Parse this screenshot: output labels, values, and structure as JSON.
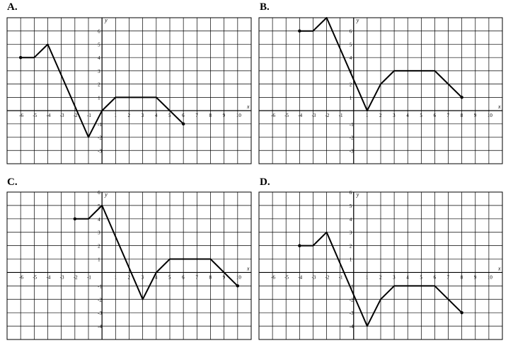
{
  "chart_data": [
    {
      "type": "line",
      "label": "A.",
      "xlabel": "x",
      "ylabel": "y",
      "xlim": [
        -7,
        11
      ],
      "ylim": [
        -4,
        7
      ],
      "x_ticks": [
        -6,
        -5,
        -4,
        -3,
        -2,
        -1,
        1,
        2,
        3,
        4,
        5,
        6,
        7,
        8,
        9,
        10
      ],
      "y_ticks": [
        -3,
        -2,
        -1,
        1,
        2,
        3,
        4,
        5,
        6
      ],
      "grid": true,
      "series": [
        {
          "points": [
            [
              -6,
              4
            ],
            [
              -5,
              4
            ],
            [
              -4,
              5
            ],
            [
              -1,
              -2
            ],
            [
              0,
              0
            ],
            [
              1,
              1
            ],
            [
              4,
              1
            ],
            [
              6,
              -1
            ]
          ]
        }
      ]
    },
    {
      "type": "line",
      "label": "B.",
      "xlabel": "x",
      "ylabel": "y",
      "xlim": [
        -7,
        11
      ],
      "ylim": [
        -4,
        7
      ],
      "x_ticks": [
        -6,
        -5,
        -4,
        -3,
        -2,
        -1,
        1,
        2,
        3,
        4,
        5,
        6,
        7,
        8,
        9,
        10
      ],
      "y_ticks": [
        -3,
        -2,
        -1,
        1,
        2,
        3,
        4,
        5,
        6
      ],
      "grid": true,
      "series": [
        {
          "points": [
            [
              -4,
              6
            ],
            [
              -3,
              6
            ],
            [
              -2,
              7
            ],
            [
              1,
              0
            ],
            [
              2,
              2
            ],
            [
              3,
              3
            ],
            [
              6,
              3
            ],
            [
              8,
              1
            ]
          ]
        }
      ]
    },
    {
      "type": "line",
      "label": "C.",
      "xlabel": "x",
      "ylabel": "y",
      "xlim": [
        -7,
        11
      ],
      "ylim": [
        -5,
        6
      ],
      "x_ticks": [
        -6,
        -5,
        -4,
        -3,
        -2,
        -1,
        1,
        2,
        3,
        4,
        5,
        6,
        7,
        8,
        9,
        10
      ],
      "y_ticks": [
        -4,
        -3,
        -2,
        -1,
        1,
        2,
        3,
        4,
        5,
        6
      ],
      "grid": true,
      "series": [
        {
          "points": [
            [
              -2,
              4
            ],
            [
              -1,
              4
            ],
            [
              0,
              5
            ],
            [
              3,
              -2
            ],
            [
              4,
              0
            ],
            [
              5,
              1
            ],
            [
              8,
              1
            ],
            [
              10,
              -1
            ]
          ]
        }
      ]
    },
    {
      "type": "line",
      "label": "D.",
      "xlabel": "x",
      "ylabel": "y",
      "xlim": [
        -7,
        11
      ],
      "ylim": [
        -5,
        6
      ],
      "x_ticks": [
        -6,
        -5,
        -4,
        -3,
        -2,
        -1,
        1,
        2,
        3,
        4,
        5,
        6,
        7,
        8,
        9,
        10
      ],
      "y_ticks": [
        -4,
        -3,
        -2,
        -1,
        1,
        2,
        3,
        4,
        5,
        6
      ],
      "grid": true,
      "series": [
        {
          "points": [
            [
              -4,
              2
            ],
            [
              -3,
              2
            ],
            [
              -2,
              3
            ],
            [
              1,
              -4
            ],
            [
              2,
              -2
            ],
            [
              3,
              -1
            ],
            [
              6,
              -1
            ],
            [
              8,
              -3
            ]
          ]
        }
      ]
    }
  ]
}
